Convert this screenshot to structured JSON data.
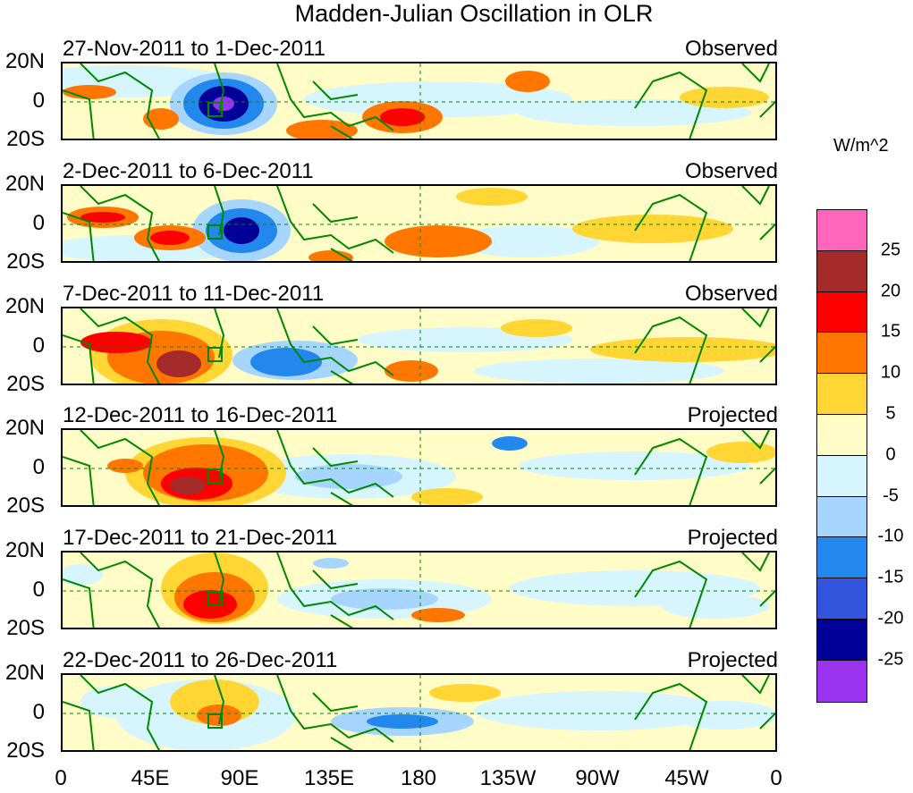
{
  "title": "Madden-Julian Oscillation in OLR",
  "units": "W/m^2",
  "y_labels": [
    "20N",
    "0",
    "20S"
  ],
  "x_labels": [
    "0",
    "45E",
    "90E",
    "135E",
    "180",
    "135W",
    "90W",
    "45W",
    "0"
  ],
  "panels": [
    {
      "period": "27-Nov-2011 to 1-Dec-2011",
      "type": "Observed"
    },
    {
      "period": "2-Dec-2011 to 6-Dec-2011",
      "type": "Observed"
    },
    {
      "period": "7-Dec-2011 to 11-Dec-2011",
      "type": "Observed"
    },
    {
      "period": "12-Dec-2011 to 16-Dec-2011",
      "type": "Projected"
    },
    {
      "period": "17-Dec-2011 to 21-Dec-2011",
      "type": "Projected"
    },
    {
      "period": "22-Dec-2011 to 26-Dec-2011",
      "type": "Projected"
    }
  ],
  "colorbar": {
    "labels": [
      "25",
      "20",
      "15",
      "10",
      "5",
      "0",
      "-5",
      "-10",
      "-15",
      "-20",
      "-25"
    ],
    "colors": [
      "#ff66bb",
      "#a52a2a",
      "#ff0000",
      "#ff7700",
      "#ffd633",
      "#fffcc8",
      "#d6f5ff",
      "#a6d5ff",
      "#2288ee",
      "#3355dd",
      "#000099",
      "#9a33ee"
    ]
  },
  "colors": {
    "land": "#008800",
    "frame": "#000000",
    "background": "#ffffff"
  }
}
